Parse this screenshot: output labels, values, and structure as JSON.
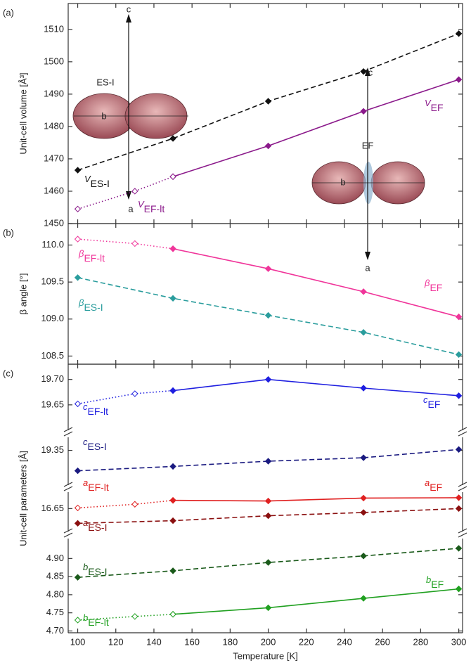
{
  "chart_data": [
    {
      "type": "line",
      "panel_label": "(a)",
      "ylabel": "Unit-cell volume [Å³]",
      "xlim": [
        95,
        302
      ],
      "ylim": [
        1450,
        1518
      ],
      "yticks": [
        1450,
        1460,
        1470,
        1480,
        1490,
        1500,
        1510
      ],
      "series": [
        {
          "name": "V",
          "subscript": "ES-I",
          "color": "#111111",
          "style": "dashed",
          "x": [
            100,
            150,
            200,
            250,
            300
          ],
          "values": [
            1466.5,
            1476.3,
            1487.8,
            1497.0,
            1508.7
          ]
        },
        {
          "name": "V",
          "subscript": "EF",
          "color": "#8b1a8b",
          "style": "solid",
          "x": [
            150,
            200,
            250,
            300
          ],
          "values": [
            1464.5,
            1474.0,
            1484.7,
            1494.5
          ]
        },
        {
          "name": "V",
          "subscript": "EF-lt",
          "color": "#8b1a8b",
          "style": "dotted",
          "x": [
            100,
            130,
            150
          ],
          "values": [
            1454.5,
            1460.0,
            1464.5
          ]
        }
      ],
      "insets": [
        {
          "label": "ES-I",
          "axis_labels": [
            "c",
            "b",
            "a"
          ]
        },
        {
          "label": "EF",
          "axis_labels": [
            "c",
            "b",
            "a"
          ]
        }
      ]
    },
    {
      "type": "line",
      "panel_label": "(b)",
      "ylabel": "β angle [°]",
      "xlim": [
        95,
        302
      ],
      "ylim": [
        108.39,
        110.29
      ],
      "yticks": [
        108.5,
        {
          "value": 109,
          "label": "109.0"
        },
        109.5,
        {
          "value": 110,
          "label": "110.0"
        }
      ],
      "series": [
        {
          "name": "β",
          "subscript": "EF-lt",
          "color": "#f0359a",
          "style": "dotted",
          "x": [
            100,
            130,
            150
          ],
          "values": [
            110.08,
            110.02,
            109.95
          ]
        },
        {
          "name": "β",
          "subscript": "EF",
          "color": "#f0359a",
          "style": "solid",
          "x": [
            150,
            200,
            250,
            300
          ],
          "values": [
            109.95,
            109.68,
            109.37,
            109.03
          ]
        },
        {
          "name": "β",
          "subscript": "ES-I",
          "color": "#2a9d9d",
          "style": "dashed",
          "x": [
            100,
            150,
            200,
            250,
            300
          ],
          "values": [
            109.56,
            109.28,
            109.05,
            108.82,
            108.52
          ]
        }
      ]
    },
    {
      "type": "broken-line",
      "panel_label": "(c)",
      "ylabel": "Unit-cell parameters [Å]",
      "xlabel": "Temperature [K]",
      "xlim": [
        95,
        302
      ],
      "xticks": [
        100,
        120,
        140,
        160,
        180,
        200,
        220,
        240,
        260,
        280,
        300
      ],
      "segments": [
        {
          "ylim": [
            19.6,
            19.73
          ],
          "yticks": [
            19.65,
            {
              "value": 19.7,
              "label": "19.70"
            }
          ],
          "series": [
            {
              "name": "c",
              "subscript": "EF-lt",
              "color": "#1f1fe0",
              "style": "dotted",
              "x": [
                100,
                130,
                150
              ],
              "values": [
                19.652,
                19.672,
                19.678
              ]
            },
            {
              "name": "c",
              "subscript": "EF",
              "color": "#1f1fe0",
              "style": "solid",
              "x": [
                150,
                200,
                250,
                300
              ],
              "values": [
                19.678,
                19.7,
                19.683,
                19.668
              ]
            }
          ]
        },
        {
          "ylim": [
            19.27,
            19.38
          ],
          "yticks": [
            19.35
          ],
          "series": [
            {
              "name": "c",
              "subscript": "ES-I",
              "color": "#1a1a80",
              "style": "dashed",
              "x": [
                100,
                150,
                200,
                250,
                300
              ],
              "values": [
                19.303,
                19.313,
                19.325,
                19.333,
                19.352
              ]
            }
          ]
        },
        {
          "ylim": [
            16.58,
            16.7
          ],
          "yticks": [
            16.65
          ],
          "series": [
            {
              "name": "a",
              "subscript": "EF-lt",
              "color": "#e02020",
              "style": "dotted",
              "x": [
                100,
                130,
                150
              ],
              "values": [
                16.652,
                16.663,
                16.675
              ]
            },
            {
              "name": "a",
              "subscript": "EF",
              "color": "#e02020",
              "style": "solid",
              "x": [
                150,
                200,
                250,
                300
              ],
              "values": [
                16.675,
                16.673,
                16.682,
                16.683
              ]
            },
            {
              "name": "a",
              "subscript": "ES-I",
              "color": "#8b1010",
              "style": "dashed",
              "x": [
                100,
                150,
                200,
                250,
                300
              ],
              "values": [
                16.605,
                16.613,
                16.628,
                16.638,
                16.65
              ]
            }
          ]
        },
        {
          "ylim": [
            4.695,
            4.955
          ],
          "yticks": [
            {
              "value": 4.7,
              "label": "4.70"
            },
            4.75,
            {
              "value": 4.8,
              "label": "4.80"
            },
            4.85,
            {
              "value": 4.9,
              "label": "4.90"
            }
          ],
          "series": [
            {
              "name": "b",
              "subscript": "ES-I",
              "color": "#1a5a1a",
              "style": "dashed",
              "x": [
                100,
                150,
                200,
                250,
                300
              ],
              "values": [
                4.848,
                4.866,
                4.889,
                4.907,
                4.928
              ]
            },
            {
              "name": "b",
              "subscript": "EF",
              "color": "#20a020",
              "style": "solid",
              "x": [
                150,
                200,
                250,
                300
              ],
              "values": [
                4.746,
                4.764,
                4.79,
                4.816
              ]
            },
            {
              "name": "b",
              "subscript": "EF-lt",
              "color": "#20a020",
              "style": "dotted",
              "x": [
                100,
                130,
                150
              ],
              "values": [
                4.73,
                4.74,
                4.746
              ]
            }
          ]
        }
      ]
    }
  ]
}
